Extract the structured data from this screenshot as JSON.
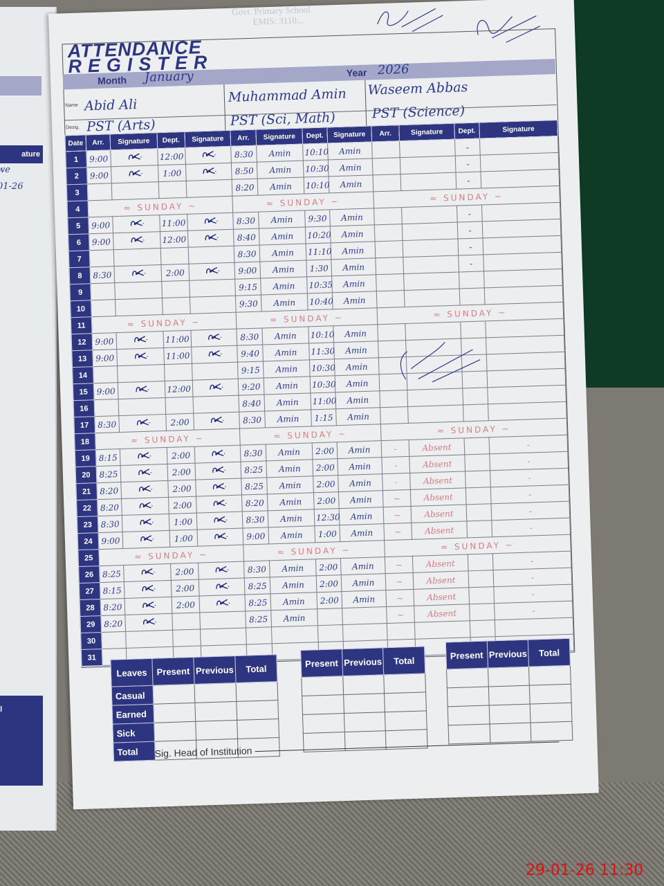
{
  "left_page": {
    "header": "ature",
    "ink_lines": [
      "we",
      "01-26"
    ],
    "footer": "al"
  },
  "stamp": {
    "lines": [
      "Govt. Primary School",
      "",
      "EMIS: 3110..."
    ]
  },
  "register": {
    "title_line1": "ATTENDANCE",
    "title_line2": "REGISTER",
    "month_label": "Month",
    "month_value": "January",
    "year_label": "Year",
    "year_value": "2026",
    "name_label": "Name",
    "desig_label": "Desig.",
    "teachers": [
      {
        "name": "Abid Ali",
        "designation": "PST (Arts)"
      },
      {
        "name": "Muhammad Amin",
        "designation": "PST (Sci, Math)"
      },
      {
        "name": "Waseem Abbas",
        "designation": "PST (Science)"
      }
    ],
    "columns": [
      "Date",
      "Arr.",
      "Signature",
      "Dept.",
      "Signature",
      "Arr.",
      "Signature",
      "Dept.",
      "Signature",
      "Arr.",
      "Signature",
      "Dept.",
      "Signature"
    ],
    "rows": [
      {
        "date": "1",
        "cells": [
          [
            "9:00",
            true,
            "12:00",
            true
          ],
          [
            "8:30",
            "Amin",
            "10:10",
            "Amin"
          ],
          [
            "",
            "",
            "-",
            ""
          ]
        ]
      },
      {
        "date": "2",
        "cells": [
          [
            "9:00",
            true,
            "1:00",
            true
          ],
          [
            "8:50",
            "Amin",
            "10:30",
            "Amin"
          ],
          [
            "",
            "",
            "-",
            ""
          ]
        ]
      },
      {
        "date": "3",
        "cells": [
          [
            "",
            "",
            "",
            ""
          ],
          [
            "8:20",
            "Amin",
            "10:10",
            "Amin"
          ],
          [
            "",
            "",
            "-",
            ""
          ]
        ]
      },
      {
        "date": "4",
        "cells": [
          {
            "note": "≈ SUNDAY ~"
          },
          {
            "note": "≈ SUNDAY ~"
          },
          {
            "note": "≈ SUNDAY ~"
          }
        ]
      },
      {
        "date": "5",
        "cells": [
          [
            "9:00",
            true,
            "11:00",
            true
          ],
          [
            "8:30",
            "Amin",
            "9:30",
            "Amin"
          ],
          [
            "",
            "",
            "-",
            ""
          ]
        ]
      },
      {
        "date": "6",
        "cells": [
          [
            "9:00",
            true,
            "12:00",
            true
          ],
          [
            "8:40",
            "Amin",
            "10:20",
            "Amin"
          ],
          [
            "",
            "",
            "-",
            ""
          ]
        ]
      },
      {
        "date": "7",
        "cells": [
          [
            "",
            "",
            "",
            ""
          ],
          [
            "8:30",
            "Amin",
            "11:10",
            "Amin"
          ],
          [
            "",
            "",
            "-",
            ""
          ]
        ]
      },
      {
        "date": "8",
        "cells": [
          [
            "8:30",
            true,
            "2:00",
            true
          ],
          [
            "9:00",
            "Amin",
            "1:30",
            "Amin"
          ],
          [
            "",
            "",
            "-",
            ""
          ]
        ]
      },
      {
        "date": "9",
        "cells": [
          [
            "",
            "",
            "",
            ""
          ],
          [
            "9:15",
            "Amin",
            "10:35",
            "Amin"
          ],
          [
            "",
            "",
            "",
            ""
          ]
        ]
      },
      {
        "date": "10",
        "cells": [
          [
            "",
            "",
            "",
            ""
          ],
          [
            "9:30",
            "Amin",
            "10:40",
            "Amin"
          ],
          [
            "",
            "",
            "",
            ""
          ]
        ]
      },
      {
        "date": "11",
        "cells": [
          {
            "note": "≈ SUNDAY ~"
          },
          {
            "note": "≈ SUNDAY ~"
          },
          {
            "note": "≈ SUNDAY ~"
          }
        ]
      },
      {
        "date": "12",
        "cells": [
          [
            "9:00",
            true,
            "11:00",
            true
          ],
          [
            "8:30",
            "Amin",
            "10:10",
            "Amin"
          ],
          [
            "",
            "",
            "",
            ""
          ]
        ]
      },
      {
        "date": "13",
        "cells": [
          [
            "9:00",
            true,
            "11:00",
            true
          ],
          [
            "9:40",
            "Amin",
            "11:30",
            "Amin"
          ],
          [
            "",
            "",
            "",
            ""
          ]
        ]
      },
      {
        "date": "14",
        "cells": [
          [
            "",
            "",
            "",
            ""
          ],
          [
            "9:15",
            "Amin",
            "10:30",
            "Amin"
          ],
          [
            "",
            "",
            "",
            ""
          ]
        ]
      },
      {
        "date": "15",
        "cells": [
          [
            "9:00",
            true,
            "12:00",
            true
          ],
          [
            "9:20",
            "Amin",
            "10:30",
            "Amin"
          ],
          [
            "",
            "",
            "",
            ""
          ]
        ]
      },
      {
        "date": "16",
        "cells": [
          [
            "",
            "",
            "",
            ""
          ],
          [
            "8:40",
            "Amin",
            "11:00",
            "Amin"
          ],
          [
            "",
            "",
            "",
            ""
          ]
        ]
      },
      {
        "date": "17",
        "cells": [
          [
            "8:30",
            true,
            "2:00",
            true
          ],
          [
            "8:30",
            "Amin",
            "1:15",
            "Amin"
          ],
          [
            "",
            "",
            "",
            ""
          ]
        ]
      },
      {
        "date": "18",
        "cells": [
          {
            "note": "≈ SUNDAY ~"
          },
          {
            "note": "≈ SUNDAY ~"
          },
          {
            "note": "≈ SUNDAY ~"
          }
        ]
      },
      {
        "date": "19",
        "cells": [
          [
            "8:15",
            true,
            "2:00",
            true
          ],
          [
            "8:30",
            "Amin",
            "2:00",
            "Amin"
          ],
          [
            "-",
            "Absent",
            "",
            "-"
          ]
        ]
      },
      {
        "date": "20",
        "cells": [
          [
            "8:25",
            true,
            "2:00",
            true
          ],
          [
            "8:25",
            "Amin",
            "2:00",
            "Amin"
          ],
          [
            "-",
            "Absent",
            "",
            "-"
          ]
        ]
      },
      {
        "date": "21",
        "cells": [
          [
            "8:20",
            true,
            "2:00",
            true
          ],
          [
            "8:25",
            "Amin",
            "2:00",
            "Amin"
          ],
          [
            "-",
            "Absent",
            "",
            "-"
          ]
        ]
      },
      {
        "date": "22",
        "cells": [
          [
            "8:20",
            true,
            "2:00",
            true
          ],
          [
            "8:20",
            "Amin",
            "2:00",
            "Amin"
          ],
          [
            "~",
            "Absent",
            "",
            "-"
          ]
        ]
      },
      {
        "date": "23",
        "cells": [
          [
            "8:30",
            true,
            "1:00",
            true
          ],
          [
            "8:30",
            "Amin",
            "12:30",
            "Amin"
          ],
          [
            "~",
            "Absent",
            "",
            "-"
          ]
        ]
      },
      {
        "date": "24",
        "cells": [
          [
            "9:00",
            true,
            "1:00",
            true
          ],
          [
            "9:00",
            "Amin",
            "1:00",
            "Amin"
          ],
          [
            "~",
            "Absent",
            "",
            "-"
          ]
        ]
      },
      {
        "date": "25",
        "cells": [
          {
            "note": "≈ SUNDAY ~"
          },
          {
            "note": "≈ SUNDAY ~"
          },
          {
            "note": "≈ SUNDAY ~"
          }
        ]
      },
      {
        "date": "26",
        "cells": [
          [
            "8:25",
            true,
            "2:00",
            true
          ],
          [
            "8:30",
            "Amin",
            "2:00",
            "Amin"
          ],
          [
            "~",
            "Absent",
            "",
            "-"
          ]
        ]
      },
      {
        "date": "27",
        "cells": [
          [
            "8:15",
            true,
            "2:00",
            true
          ],
          [
            "8:25",
            "Amin",
            "2:00",
            "Amin"
          ],
          [
            "~",
            "Absent",
            "",
            "-"
          ]
        ]
      },
      {
        "date": "28",
        "cells": [
          [
            "8:20",
            true,
            "2:00",
            true
          ],
          [
            "8:25",
            "Amin",
            "2:00",
            "Amin"
          ],
          [
            "~",
            "Absent",
            "",
            "-"
          ]
        ]
      },
      {
        "date": "29",
        "cells": [
          [
            "8:20",
            true,
            "",
            ""
          ],
          [
            "8:25",
            "Amin",
            "",
            ""
          ],
          [
            "~",
            "Absent",
            "",
            "-"
          ]
        ]
      },
      {
        "date": "30",
        "cells": [
          [
            "",
            "",
            "",
            ""
          ],
          [
            "",
            "",
            "",
            ""
          ],
          [
            "",
            "",
            "",
            ""
          ]
        ]
      },
      {
        "date": "31",
        "cells": [
          [
            "",
            "",
            "",
            ""
          ],
          [
            "",
            "",
            "",
            ""
          ],
          [
            "",
            "",
            "",
            ""
          ]
        ]
      }
    ]
  },
  "leaves": {
    "row_header": "Leaves",
    "columns": [
      "Present",
      "Previous",
      "Total"
    ],
    "row_labels": [
      "Casual",
      "Earned",
      "Sick",
      "Total"
    ]
  },
  "signature_head_label": "Sig. Head of Institution",
  "timestamp": "29-01-26  11:30",
  "colors": {
    "navy": "#2e3580",
    "band": "#a4a7c8",
    "ink_blue": "#2c3a8e",
    "ink_red": "#d67f86",
    "timestamp": "#e01010"
  }
}
